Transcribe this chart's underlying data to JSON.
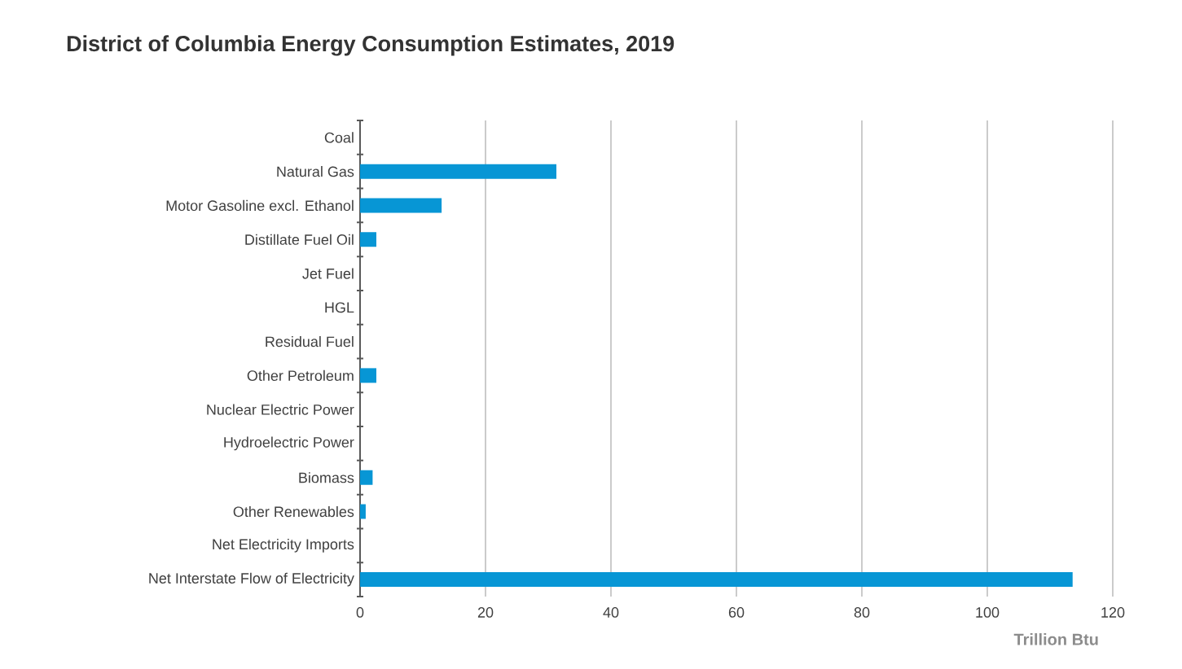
{
  "chart_data": {
    "type": "bar",
    "orientation": "horizontal",
    "title": "District of Columbia Energy Consumption Estimates, 2019",
    "xlabel": "Trillion Btu",
    "categories": [
      "Coal",
      "Natural Gas",
      "Motor Gasoline excl. Ethanol",
      "Distillate Fuel Oil",
      "Jet Fuel",
      "HGL",
      "Residual Fuel",
      "Other Petroleum",
      "Nuclear Electric Power",
      "Hydroelectric Power",
      "Biomass",
      "Other Renewables",
      "Net Electricity Imports",
      "Net Interstate Flow of Electricity"
    ],
    "values": [
      0,
      31.3,
      13.0,
      2.6,
      0,
      0,
      0,
      2.6,
      0,
      0,
      2.0,
      0.9,
      0,
      113.6
    ],
    "color": "#0796d5",
    "xlim": [
      0,
      120
    ],
    "xticks": [
      0,
      20,
      40,
      60,
      80,
      100,
      120
    ],
    "grid": "x"
  }
}
